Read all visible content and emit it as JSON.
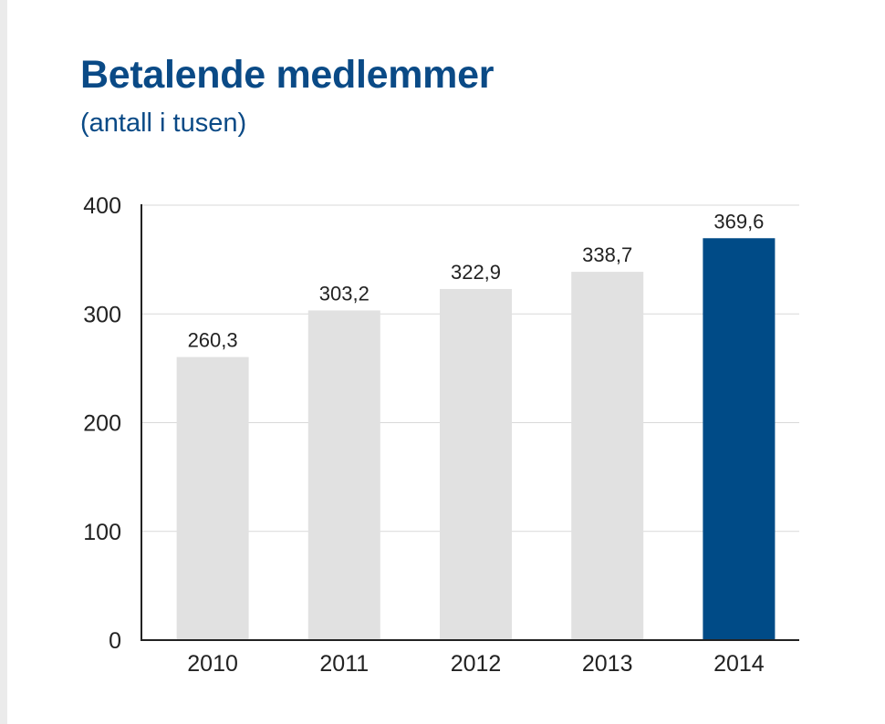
{
  "title": "Betalende medlemmer",
  "subtitle": "(antall i tusen)",
  "colors": {
    "title": "#0a4a86",
    "bar_default": "#e1e1e1",
    "bar_highlight": "#004b87",
    "grid": "#d9d9d9",
    "axis": "#222222"
  },
  "chart_data": {
    "type": "bar",
    "title": "Betalende medlemmer",
    "subtitle": "(antall i tusen)",
    "categories": [
      "2010",
      "2011",
      "2012",
      "2013",
      "2014"
    ],
    "values": [
      260.3,
      303.2,
      322.9,
      338.7,
      369.6
    ],
    "value_labels": [
      "260,3",
      "303,2",
      "322,9",
      "338,7",
      "369,6"
    ],
    "highlight_category": "2014",
    "ylim": [
      0,
      400
    ],
    "yticks": [
      0,
      100,
      200,
      300,
      400
    ],
    "xlabel": "",
    "ylabel": "",
    "grid": true,
    "legend": "none"
  }
}
